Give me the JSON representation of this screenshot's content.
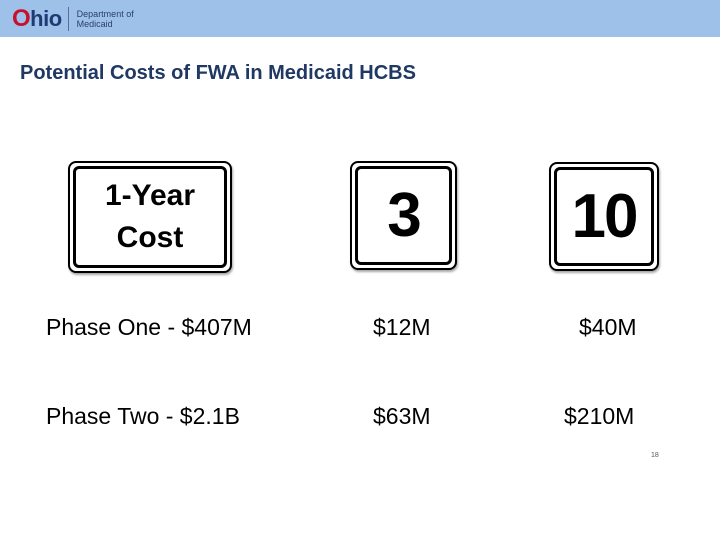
{
  "header": {
    "logo_o": "O",
    "logo_rest": "hio",
    "dept_line1": "Department of",
    "dept_line2": "Medicaid",
    "bar_color": "#9ec1ea"
  },
  "title": "Potential Costs of FWA in Medicaid HCBS",
  "signs": {
    "cost_label": "1-Year\nCost",
    "three": "3",
    "ten": "10"
  },
  "rows": [
    {
      "label": "Phase One - $407M",
      "three_year": "$12M",
      "ten_year": "$40M"
    },
    {
      "label": "Phase Two - $2.1B",
      "three_year": "$63M",
      "ten_year": "$210M"
    }
  ],
  "page_number": "18",
  "colors": {
    "title": "#1f3864",
    "ohio_red": "#c8102e",
    "ohio_blue": "#1f3b73"
  }
}
